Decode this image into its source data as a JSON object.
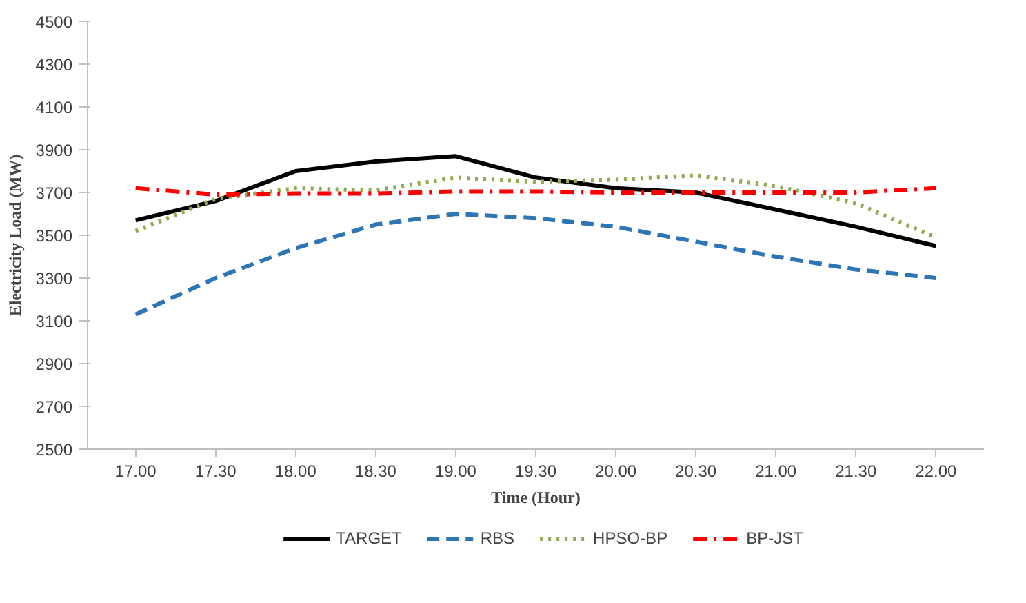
{
  "chart_data": {
    "type": "line",
    "xlabel": "Time (Hour)",
    "ylabel": "Electricity Load (MW)",
    "categories": [
      "17.00",
      "17.30",
      "18.00",
      "18.30",
      "19.00",
      "19.30",
      "20.00",
      "20.30",
      "21.00",
      "21.30",
      "22.00"
    ],
    "ylim": [
      2500,
      4500
    ],
    "yticks": [
      2500,
      2700,
      2900,
      3100,
      3300,
      3500,
      3700,
      3900,
      4100,
      4300,
      4500
    ],
    "grid": false,
    "legend": "bottom",
    "series": [
      {
        "name": "TARGET",
        "color": "#000000",
        "line_style": "solid",
        "values": [
          3570,
          3660,
          3800,
          3845,
          3870,
          3770,
          3720,
          3700,
          3620,
          3540,
          3450
        ]
      },
      {
        "name": "RBS",
        "color": "#2e75b6",
        "line_style": "dashed",
        "values": [
          3130,
          3300,
          3440,
          3550,
          3600,
          3580,
          3540,
          3470,
          3400,
          3340,
          3300
        ]
      },
      {
        "name": "HPSO-BP",
        "color": "#8faa4f",
        "line_style": "dotted",
        "values": [
          3520,
          3670,
          3720,
          3710,
          3770,
          3750,
          3760,
          3780,
          3730,
          3650,
          3490
        ]
      },
      {
        "name": "BP-JST",
        "color": "#ff0000",
        "line_style": "dashdot",
        "values": [
          3720,
          3690,
          3695,
          3695,
          3705,
          3705,
          3700,
          3700,
          3700,
          3700,
          3720
        ]
      }
    ]
  }
}
